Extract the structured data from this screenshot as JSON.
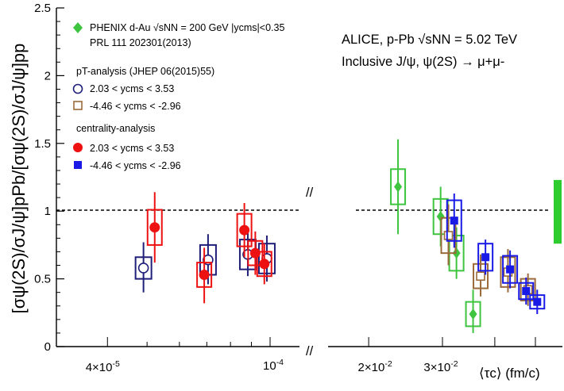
{
  "chart_data": {
    "type": "scatter",
    "ylabel": "[σψ(2S)/σJ/ψ]pPb/[σψ(2S)/σJ/ψ]pp",
    "xlabel": "⟨τc⟩ (fm/c)",
    "ylim": [
      0,
      2.5
    ],
    "y_ticks": [
      "0",
      "0.5",
      "1",
      "1.5",
      "2",
      "2.5"
    ],
    "left_panel_x_ticks": [
      "4×10-5",
      "10-4"
    ],
    "right_panel_x_ticks": [
      "2×10-2",
      "3×10-2"
    ],
    "x_axis_break": "//",
    "reference_line": 1,
    "top_right_text": {
      "line1": "ALICE, p-Pb √sNN = 5.02 TeV",
      "line2": "Inclusive J/ψ, ψ(2S) → μ+μ-"
    },
    "legend": [
      {
        "marker": "diamond",
        "color": "#3fc43f",
        "label": "PHENIX d-Au √sNN = 200 GeV |ycms|<0.35"
      },
      {
        "marker": "none",
        "label": "PRL 111 202301(2013)"
      },
      {
        "marker": "none",
        "label": "pT-analysis (JHEP 06(2015)55)"
      },
      {
        "marker": "open-circle",
        "color": "#1f1f7a",
        "label": "2.03 < ycms < 3.53"
      },
      {
        "marker": "open-square",
        "color": "#9b6a3a",
        "label": "-4.46 < ycms < -2.96"
      },
      {
        "marker": "none",
        "label": "centrality-analysis"
      },
      {
        "marker": "filled-circle",
        "color": "#ee1111",
        "label": "2.03 < ycms < 3.53"
      },
      {
        "marker": "filled-square",
        "color": "#1a1ae6",
        "label": "-4.46 < ycms < -2.96"
      }
    ],
    "global_syst_band": {
      "color": "#2ecc2e",
      "y_low": 0.76,
      "y_high": 1.23
    },
    "series": [
      {
        "name": "PHENIX d-Au",
        "panel": "right",
        "marker": "diamond",
        "color": "#3fc43f",
        "points": [
          {
            "x": 0.0235,
            "y": 1.18,
            "stat_lo": 0.83,
            "stat_hi": 1.53,
            "syst": 0.13
          },
          {
            "x": 0.0297,
            "y": 0.96,
            "stat_lo": 0.74,
            "stat_hi": 1.18,
            "syst": 0.13
          },
          {
            "x": 0.0324,
            "y": 0.69,
            "stat_lo": 0.5,
            "stat_hi": 0.88,
            "syst": 0.13
          },
          {
            "x": 0.0355,
            "y": 0.24,
            "stat_lo": 0.1,
            "stat_hi": 0.42,
            "syst": 0.09
          }
        ]
      },
      {
        "name": "pT-analysis 2.03 < ycms < 3.53",
        "panel": "left",
        "marker": "open-circle",
        "color": "#1f1f7a",
        "points": [
          {
            "x": 4.9e-05,
            "y": 0.58,
            "stat_lo": 0.4,
            "stat_hi": 0.77,
            "syst": 0.08
          },
          {
            "x": 7.05e-05,
            "y": 0.64,
            "stat_lo": 0.46,
            "stat_hi": 0.83,
            "syst": 0.11
          },
          {
            "x": 8.82e-05,
            "y": 0.68,
            "stat_lo": 0.52,
            "stat_hi": 0.84,
            "syst": 0.11
          },
          {
            "x": 9.82e-05,
            "y": 0.65,
            "stat_lo": 0.48,
            "stat_hi": 0.82,
            "syst": 0.11
          }
        ]
      },
      {
        "name": "pT-analysis -4.46 < ycms < -2.96",
        "panel": "right",
        "marker": "open-square",
        "color": "#9b6a3a",
        "points": [
          {
            "x": 0.031,
            "y": 0.82,
            "stat_lo": 0.6,
            "stat_hi": 1.05,
            "syst": 0.13
          },
          {
            "x": 0.037,
            "y": 0.52,
            "stat_lo": 0.37,
            "stat_hi": 0.68,
            "syst": 0.09
          },
          {
            "x": 0.043,
            "y": 0.55,
            "stat_lo": 0.4,
            "stat_hi": 0.72,
            "syst": 0.11
          },
          {
            "x": 0.048,
            "y": 0.42,
            "stat_lo": 0.3,
            "stat_hi": 0.54,
            "syst": 0.08
          }
        ]
      },
      {
        "name": "centrality-analysis 2.03 < ycms < 3.53",
        "panel": "left",
        "marker": "filled-circle",
        "color": "#ee1111",
        "points": [
          {
            "x": 5.22e-05,
            "y": 0.88,
            "stat_lo": 0.62,
            "stat_hi": 1.14,
            "syst": 0.13
          },
          {
            "x": 6.9e-05,
            "y": 0.53,
            "stat_lo": 0.32,
            "stat_hi": 0.73,
            "syst": 0.09
          },
          {
            "x": 8.65e-05,
            "y": 0.86,
            "stat_lo": 0.66,
            "stat_hi": 1.06,
            "syst": 0.12
          },
          {
            "x": 9.2e-05,
            "y": 0.69,
            "stat_lo": 0.53,
            "stat_hi": 0.85,
            "syst": 0.09
          },
          {
            "x": 9.68e-05,
            "y": 0.61,
            "stat_lo": 0.46,
            "stat_hi": 0.76,
            "syst": 0.09
          }
        ]
      },
      {
        "name": "centrality-analysis -4.46 < ycms < -2.96",
        "panel": "right",
        "marker": "filled-square",
        "color": "#1a1ae6",
        "points": [
          {
            "x": 0.032,
            "y": 0.93,
            "stat_lo": 0.73,
            "stat_hi": 1.13,
            "syst": 0.15
          },
          {
            "x": 0.038,
            "y": 0.66,
            "stat_lo": 0.53,
            "stat_hi": 0.79,
            "syst": 0.1
          },
          {
            "x": 0.0435,
            "y": 0.57,
            "stat_lo": 0.43,
            "stat_hi": 0.71,
            "syst": 0.1
          },
          {
            "x": 0.0475,
            "y": 0.41,
            "stat_lo": 0.31,
            "stat_hi": 0.51,
            "syst": 0.06
          },
          {
            "x": 0.0505,
            "y": 0.33,
            "stat_lo": 0.24,
            "stat_hi": 0.42,
            "syst": 0.05
          }
        ]
      }
    ]
  }
}
